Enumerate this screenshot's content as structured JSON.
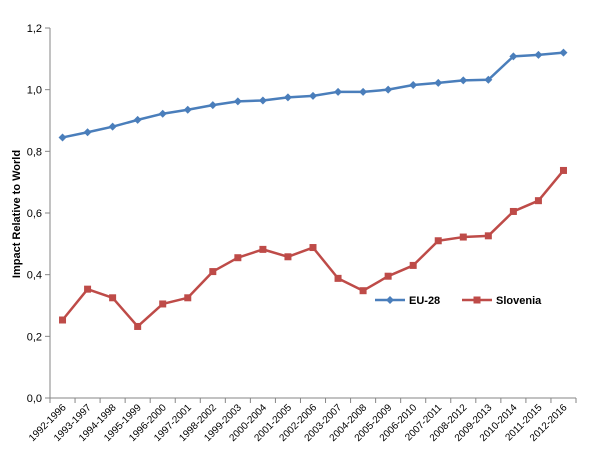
{
  "chart_data": {
    "type": "line",
    "title": "",
    "xlabel": "",
    "ylabel": "Impact Relative to World",
    "ylim": [
      0,
      1.2
    ],
    "yticks": [
      "0,0",
      "0,2",
      "0,4",
      "0,6",
      "0,8",
      "1,0",
      "1,2"
    ],
    "grid": false,
    "legend_placement": "bottom-right",
    "categories": [
      "1992-1996",
      "1993-1997",
      "1994-1998",
      "1995-1999",
      "1996-2000",
      "1997-2001",
      "1998-2002",
      "1999-2003",
      "2000-2004",
      "2001-2005",
      "2002-2006",
      "2003-2007",
      "2004-2008",
      "2005-2009",
      "2006-2010",
      "2007-2011",
      "2008-2012",
      "2009-2013",
      "2010-2014",
      "2011-2015",
      "2012-2016"
    ],
    "series": [
      {
        "name": "EU-28",
        "color": "#4a7ebb",
        "marker": "diamond",
        "values": [
          0.845,
          0.862,
          0.88,
          0.902,
          0.922,
          0.935,
          0.95,
          0.962,
          0.965,
          0.975,
          0.98,
          0.993,
          0.993,
          1.0,
          1.015,
          1.022,
          1.03,
          1.032,
          1.108,
          1.113,
          1.12
        ]
      },
      {
        "name": "Slovenia",
        "color": "#be4b48",
        "marker": "square",
        "values": [
          0.253,
          0.353,
          0.325,
          0.232,
          0.305,
          0.325,
          0.41,
          0.455,
          0.482,
          0.458,
          0.488,
          0.388,
          0.348,
          0.395,
          0.43,
          0.51,
          0.522,
          0.526,
          0.605,
          0.64,
          0.738
        ]
      }
    ]
  }
}
